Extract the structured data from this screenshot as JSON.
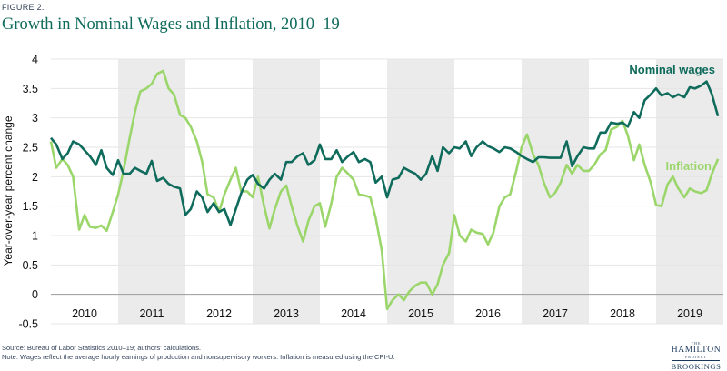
{
  "figure_label": "FIGURE 2.",
  "title": "Growth in Nominal Wages and Inflation, 2010–19",
  "source_note": "Source: Bureau of Labor Statistics 2010–19; authors' calculations.",
  "wage_note": "Note: Wages reflect the average hourly earnings of production and nonsupervisory workers. Inflation is measured using the CPI-U.",
  "logo": {
    "line1": "THE",
    "line2": "HAMILTON",
    "line3": "PROJECT",
    "line4": "BROOKINGS"
  },
  "colors": {
    "wages": "#0f6b5b",
    "inflation": "#9bd66b",
    "shade": "#ebebeb",
    "grid": "#e4e4e4"
  },
  "chart_data": {
    "type": "line",
    "ylabel": "Year-over-year percent change",
    "ylim": [
      -0.5,
      4
    ],
    "yticks": [
      "4",
      "3.5",
      "3",
      "2.5",
      "2",
      "1.5",
      "1",
      "0.5",
      "0",
      "-0.5"
    ],
    "ytick_values": [
      4,
      3.5,
      3,
      2.5,
      2,
      1.5,
      1,
      0.5,
      0,
      -0.5
    ],
    "xlim": [
      2010,
      2020
    ],
    "years": [
      "2010",
      "2011",
      "2012",
      "2013",
      "2014",
      "2015",
      "2016",
      "2017",
      "2018",
      "2019"
    ],
    "shaded_years": [
      "2011",
      "2013",
      "2015",
      "2017",
      "2019"
    ],
    "legend": "direct labels on lines",
    "series": [
      {
        "name": "Nominal wages",
        "color": "#0f6b5b",
        "points": [
          [
            2010.0,
            2.66
          ],
          [
            2010.08,
            2.55
          ],
          [
            2010.17,
            2.3
          ],
          [
            2010.25,
            2.4
          ],
          [
            2010.33,
            2.6
          ],
          [
            2010.42,
            2.55
          ],
          [
            2010.5,
            2.45
          ],
          [
            2010.58,
            2.35
          ],
          [
            2010.67,
            2.2
          ],
          [
            2010.75,
            2.45
          ],
          [
            2010.83,
            2.15
          ],
          [
            2010.92,
            2.03
          ],
          [
            2011.0,
            2.28
          ],
          [
            2011.08,
            2.05
          ],
          [
            2011.17,
            2.05
          ],
          [
            2011.25,
            2.15
          ],
          [
            2011.33,
            2.1
          ],
          [
            2011.42,
            2.05
          ],
          [
            2011.5,
            2.27
          ],
          [
            2011.58,
            1.93
          ],
          [
            2011.67,
            1.98
          ],
          [
            2011.75,
            1.88
          ],
          [
            2011.83,
            1.83
          ],
          [
            2011.92,
            1.8
          ],
          [
            2012.0,
            1.35
          ],
          [
            2012.08,
            1.45
          ],
          [
            2012.17,
            1.75
          ],
          [
            2012.25,
            1.65
          ],
          [
            2012.33,
            1.4
          ],
          [
            2012.42,
            1.55
          ],
          [
            2012.5,
            1.4
          ],
          [
            2012.58,
            1.45
          ],
          [
            2012.67,
            1.18
          ],
          [
            2012.75,
            1.45
          ],
          [
            2012.83,
            1.72
          ],
          [
            2012.92,
            1.95
          ],
          [
            2013.0,
            2.03
          ],
          [
            2013.08,
            1.88
          ],
          [
            2013.17,
            1.8
          ],
          [
            2013.25,
            1.95
          ],
          [
            2013.33,
            2.05
          ],
          [
            2013.42,
            1.95
          ],
          [
            2013.5,
            2.25
          ],
          [
            2013.58,
            2.25
          ],
          [
            2013.67,
            2.35
          ],
          [
            2013.75,
            2.4
          ],
          [
            2013.83,
            2.2
          ],
          [
            2013.92,
            2.28
          ],
          [
            2014.0,
            2.55
          ],
          [
            2014.08,
            2.3
          ],
          [
            2014.17,
            2.3
          ],
          [
            2014.25,
            2.45
          ],
          [
            2014.33,
            2.25
          ],
          [
            2014.42,
            2.35
          ],
          [
            2014.5,
            2.42
          ],
          [
            2014.58,
            2.25
          ],
          [
            2014.67,
            2.3
          ],
          [
            2014.75,
            2.25
          ],
          [
            2014.83,
            1.9
          ],
          [
            2014.92,
            2.0
          ],
          [
            2015.0,
            1.65
          ],
          [
            2015.08,
            1.95
          ],
          [
            2015.17,
            1.98
          ],
          [
            2015.25,
            2.15
          ],
          [
            2015.33,
            2.1
          ],
          [
            2015.42,
            2.05
          ],
          [
            2015.5,
            1.95
          ],
          [
            2015.58,
            2.05
          ],
          [
            2015.67,
            2.35
          ],
          [
            2015.75,
            2.1
          ],
          [
            2015.83,
            2.5
          ],
          [
            2015.92,
            2.4
          ],
          [
            2016.0,
            2.5
          ],
          [
            2016.08,
            2.48
          ],
          [
            2016.17,
            2.6
          ],
          [
            2016.25,
            2.35
          ],
          [
            2016.33,
            2.5
          ],
          [
            2016.42,
            2.6
          ],
          [
            2016.5,
            2.52
          ],
          [
            2016.58,
            2.48
          ],
          [
            2016.67,
            2.42
          ],
          [
            2016.75,
            2.5
          ],
          [
            2016.83,
            2.48
          ],
          [
            2016.92,
            2.42
          ],
          [
            2017.0,
            2.35
          ],
          [
            2017.08,
            2.3
          ],
          [
            2017.17,
            2.25
          ],
          [
            2017.25,
            2.33
          ],
          [
            2017.33,
            2.33
          ],
          [
            2017.42,
            2.32
          ],
          [
            2017.5,
            2.32
          ],
          [
            2017.58,
            2.32
          ],
          [
            2017.67,
            2.6
          ],
          [
            2017.75,
            2.18
          ],
          [
            2017.83,
            2.35
          ],
          [
            2017.92,
            2.5
          ],
          [
            2018.0,
            2.48
          ],
          [
            2018.08,
            2.48
          ],
          [
            2018.17,
            2.75
          ],
          [
            2018.25,
            2.75
          ],
          [
            2018.33,
            2.92
          ],
          [
            2018.42,
            2.9
          ],
          [
            2018.5,
            2.92
          ],
          [
            2018.58,
            2.85
          ],
          [
            2018.67,
            3.1
          ],
          [
            2018.75,
            3.0
          ],
          [
            2018.83,
            3.3
          ],
          [
            2018.92,
            3.4
          ],
          [
            2019.0,
            3.5
          ],
          [
            2019.08,
            3.38
          ],
          [
            2019.17,
            3.42
          ],
          [
            2019.25,
            3.35
          ],
          [
            2019.33,
            3.4
          ],
          [
            2019.42,
            3.35
          ],
          [
            2019.5,
            3.52
          ],
          [
            2019.58,
            3.5
          ],
          [
            2019.67,
            3.55
          ],
          [
            2019.75,
            3.62
          ],
          [
            2019.83,
            3.4
          ],
          [
            2019.92,
            3.03
          ]
        ]
      },
      {
        "name": "Inflation",
        "color": "#9bd66b",
        "points": [
          [
            2010.0,
            2.6
          ],
          [
            2010.08,
            2.15
          ],
          [
            2010.17,
            2.3
          ],
          [
            2010.25,
            2.2
          ],
          [
            2010.33,
            2.0
          ],
          [
            2010.42,
            1.1
          ],
          [
            2010.5,
            1.35
          ],
          [
            2010.58,
            1.15
          ],
          [
            2010.67,
            1.13
          ],
          [
            2010.75,
            1.17
          ],
          [
            2010.83,
            1.08
          ],
          [
            2010.92,
            1.4
          ],
          [
            2011.0,
            1.7
          ],
          [
            2011.08,
            2.1
          ],
          [
            2011.17,
            2.65
          ],
          [
            2011.25,
            3.1
          ],
          [
            2011.33,
            3.45
          ],
          [
            2011.42,
            3.5
          ],
          [
            2011.5,
            3.58
          ],
          [
            2011.58,
            3.75
          ],
          [
            2011.67,
            3.8
          ],
          [
            2011.75,
            3.5
          ],
          [
            2011.83,
            3.4
          ],
          [
            2011.92,
            3.05
          ],
          [
            2012.0,
            3.0
          ],
          [
            2012.08,
            2.85
          ],
          [
            2012.17,
            2.6
          ],
          [
            2012.25,
            2.25
          ],
          [
            2012.33,
            1.7
          ],
          [
            2012.42,
            1.65
          ],
          [
            2012.5,
            1.4
          ],
          [
            2012.58,
            1.7
          ],
          [
            2012.67,
            1.95
          ],
          [
            2012.75,
            2.15
          ],
          [
            2012.83,
            1.75
          ],
          [
            2012.92,
            1.75
          ],
          [
            2013.0,
            1.65
          ],
          [
            2013.08,
            2.0
          ],
          [
            2013.17,
            1.5
          ],
          [
            2013.25,
            1.12
          ],
          [
            2013.33,
            1.45
          ],
          [
            2013.42,
            1.75
          ],
          [
            2013.5,
            1.85
          ],
          [
            2013.58,
            1.5
          ],
          [
            2013.67,
            1.15
          ],
          [
            2013.75,
            0.9
          ],
          [
            2013.83,
            1.25
          ],
          [
            2013.92,
            1.5
          ],
          [
            2014.0,
            1.55
          ],
          [
            2014.08,
            1.15
          ],
          [
            2014.17,
            1.55
          ],
          [
            2014.25,
            2.0
          ],
          [
            2014.33,
            2.15
          ],
          [
            2014.42,
            2.05
          ],
          [
            2014.5,
            1.95
          ],
          [
            2014.58,
            1.7
          ],
          [
            2014.67,
            1.68
          ],
          [
            2014.75,
            1.65
          ],
          [
            2014.83,
            1.3
          ],
          [
            2014.92,
            0.75
          ],
          [
            2015.0,
            -0.25
          ],
          [
            2015.08,
            -0.1
          ],
          [
            2015.17,
            0.0
          ],
          [
            2015.25,
            -0.1
          ],
          [
            2015.33,
            0.05
          ],
          [
            2015.42,
            0.15
          ],
          [
            2015.5,
            0.2
          ],
          [
            2015.58,
            0.2
          ],
          [
            2015.67,
            0.0
          ],
          [
            2015.75,
            0.17
          ],
          [
            2015.83,
            0.5
          ],
          [
            2015.92,
            0.7
          ],
          [
            2016.0,
            1.35
          ],
          [
            2016.08,
            1.0
          ],
          [
            2016.17,
            0.9
          ],
          [
            2016.25,
            1.1
          ],
          [
            2016.33,
            1.05
          ],
          [
            2016.42,
            1.03
          ],
          [
            2016.5,
            0.85
          ],
          [
            2016.58,
            1.05
          ],
          [
            2016.67,
            1.5
          ],
          [
            2016.75,
            1.65
          ],
          [
            2016.83,
            1.7
          ],
          [
            2016.92,
            2.1
          ],
          [
            2017.0,
            2.5
          ],
          [
            2017.08,
            2.72
          ],
          [
            2017.17,
            2.38
          ],
          [
            2017.25,
            2.2
          ],
          [
            2017.33,
            1.9
          ],
          [
            2017.42,
            1.65
          ],
          [
            2017.5,
            1.73
          ],
          [
            2017.58,
            1.9
          ],
          [
            2017.67,
            2.2
          ],
          [
            2017.75,
            2.05
          ],
          [
            2017.83,
            2.2
          ],
          [
            2017.92,
            2.1
          ],
          [
            2018.0,
            2.1
          ],
          [
            2018.08,
            2.2
          ],
          [
            2018.17,
            2.38
          ],
          [
            2018.25,
            2.45
          ],
          [
            2018.33,
            2.8
          ],
          [
            2018.42,
            2.85
          ],
          [
            2018.5,
            2.95
          ],
          [
            2018.58,
            2.7
          ],
          [
            2018.67,
            2.28
          ],
          [
            2018.75,
            2.55
          ],
          [
            2018.83,
            2.2
          ],
          [
            2018.92,
            1.9
          ],
          [
            2019.0,
            1.52
          ],
          [
            2019.08,
            1.5
          ],
          [
            2019.17,
            1.87
          ],
          [
            2019.25,
            2.0
          ],
          [
            2019.33,
            1.8
          ],
          [
            2019.42,
            1.65
          ],
          [
            2019.5,
            1.8
          ],
          [
            2019.58,
            1.75
          ],
          [
            2019.67,
            1.72
          ],
          [
            2019.75,
            1.77
          ],
          [
            2019.83,
            2.05
          ],
          [
            2019.92,
            2.3
          ]
        ]
      }
    ]
  }
}
